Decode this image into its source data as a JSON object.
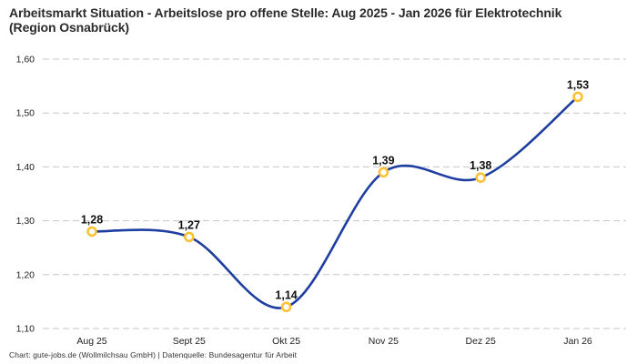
{
  "title": "Arbeitsmarkt Situation - Arbeitslose pro offene Stelle: Aug 2025 - Jan 2026 für Elektrotechnik (Region Osnabrück)",
  "footer": "Chart: gute-jobs.de (Wollmilchsau GmbH) | Datenquelle: Bundesagentur für Arbeit",
  "chart_data": {
    "type": "line",
    "title": "Arbeitsmarkt Situation - Arbeitslose pro offene Stelle: Aug 2025 - Jan 2026 für Elektrotechnik (Region Osnabrück)",
    "categories": [
      "Aug 25",
      "Sept 25",
      "Okt 25",
      "Nov 25",
      "Dez 25",
      "Jan 26"
    ],
    "values": [
      1.28,
      1.27,
      1.14,
      1.39,
      1.38,
      1.53
    ],
    "value_labels": [
      "1,28",
      "1,27",
      "1,14",
      "1,39",
      "1,38",
      "1,53"
    ],
    "y_ticks": [
      "1,10",
      "1,20",
      "1,30",
      "1,40",
      "1,50",
      "1,60"
    ],
    "y_tick_values": [
      1.1,
      1.2,
      1.3,
      1.4,
      1.5,
      1.6
    ],
    "ylim": [
      1.1,
      1.6
    ],
    "xlabel": "",
    "ylabel": "",
    "grid": "horizontal-dashed",
    "legend": "none",
    "smooth": true,
    "colors": {
      "line": "#1e3ea0",
      "marker_ring": "#fcc233",
      "marker_fill": "#ffffff",
      "gridline": "#c6c6c6",
      "tick_text": "#222222",
      "label_text": "#111111"
    }
  }
}
